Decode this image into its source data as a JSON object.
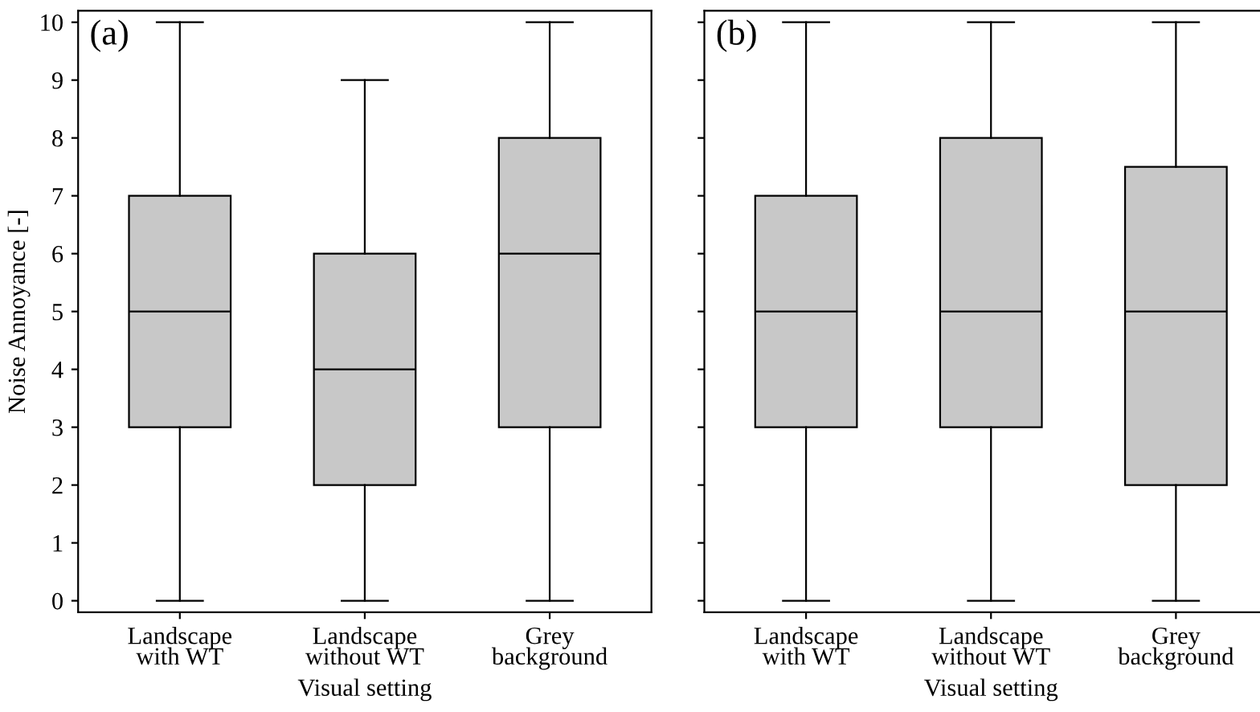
{
  "chart_data": [
    {
      "type": "box",
      "categories": [
        "Landscape\nwith WT",
        "Landscape\nwithout WT",
        "Grey\nbackground"
      ],
      "xlabel": "Visual setting",
      "ylabel": "Noise Annoyance [-]",
      "annotations": [
        "(a)"
      ],
      "ylim": [
        -0.2,
        10.2
      ],
      "yticks": [
        0,
        1,
        2,
        3,
        4,
        5,
        6,
        7,
        8,
        9,
        10
      ],
      "series": [
        {
          "color": "#c8c8c8",
          "boxes": [
            {
              "low": 0,
              "q1": 3,
              "median": 5,
              "q3": 7,
              "high": 10
            },
            {
              "low": 0,
              "q1": 2,
              "median": 4,
              "q3": 6,
              "high": 9
            },
            {
              "low": 0,
              "q1": 3,
              "median": 6,
              "q3": 8,
              "high": 10
            }
          ]
        }
      ]
    },
    {
      "type": "box",
      "categories": [
        "Landscape\nwith WT",
        "Landscape\nwithout WT",
        "Grey\nbackground"
      ],
      "xlabel": "Visual setting",
      "annotations": [
        "(b)"
      ],
      "ylim": [
        -0.2,
        10.2
      ],
      "yticks": [
        0,
        1,
        2,
        3,
        4,
        5,
        6,
        7,
        8,
        9,
        10
      ],
      "tick_labels": "x",
      "series": [
        {
          "color": "#c8c8c8",
          "boxes": [
            {
              "low": 0,
              "q1": 3,
              "median": 5,
              "q3": 7,
              "high": 10
            },
            {
              "low": 0,
              "q1": 3,
              "median": 5,
              "q3": 8,
              "high": 10
            },
            {
              "low": 0,
              "q1": 2,
              "median": 5,
              "q3": 7.5,
              "high": 10
            }
          ]
        }
      ]
    }
  ]
}
